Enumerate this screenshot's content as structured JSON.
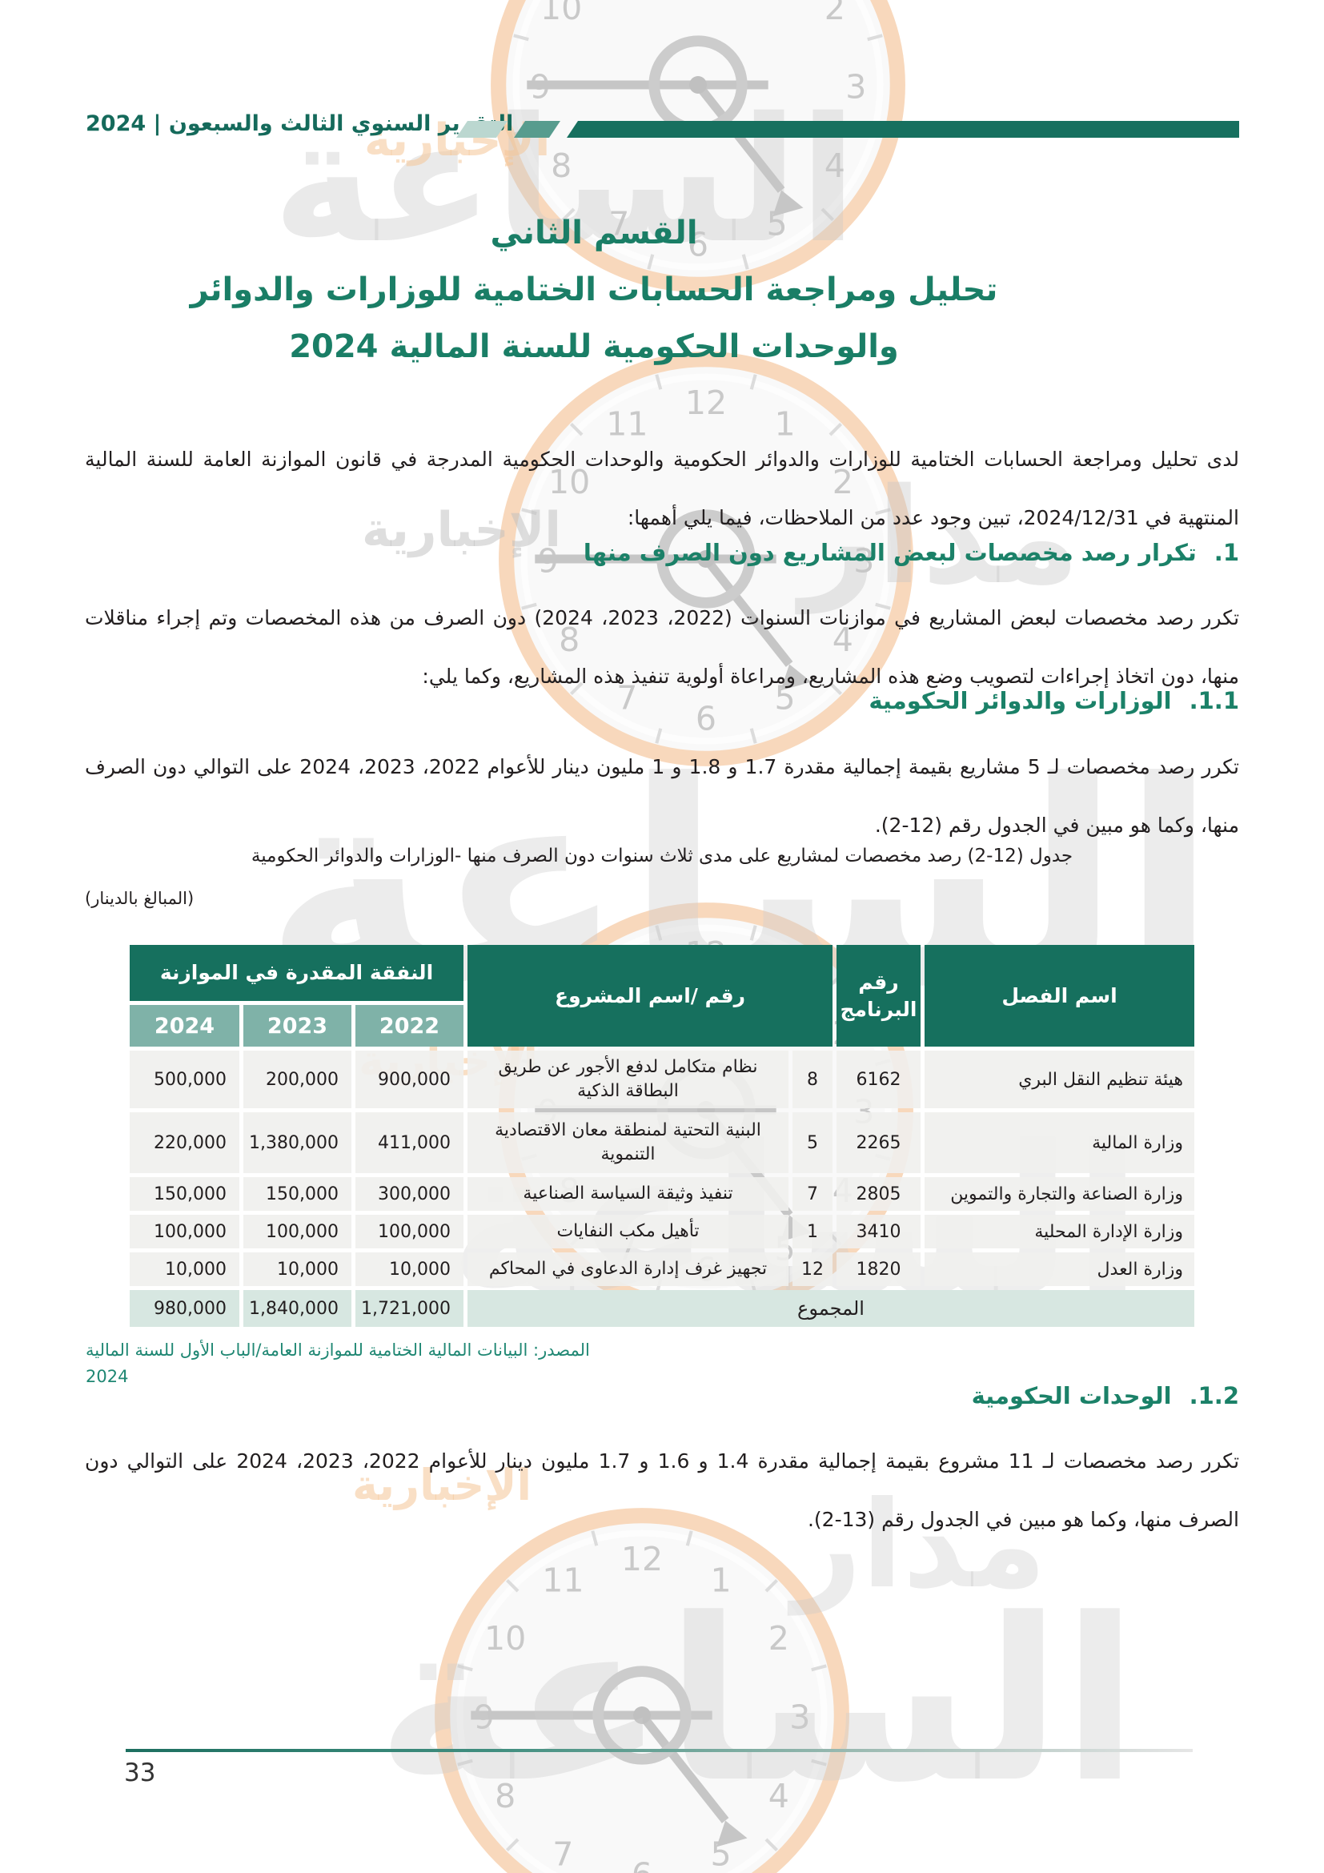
{
  "header": {
    "title": "التقرير السنوي الثالث والسبعون | 2024"
  },
  "title": {
    "line1": "القسم الثاني",
    "line2": "تحليل ومراجعة الحسابات الختامية للوزارات والدوائر",
    "line3": "والوحدات الحكومية للسنة المالية  2024"
  },
  "paras": {
    "p1": "لدى تحليل ومراجعة الحسابات الختامية للوزارات والدوائر الحكومية والوحدات الحكومية المدرجة في قانون الموازنة العامة للسنة المالية المنتهية في 2024/12/31، تبين وجود عدد من الملاحظات، فيما يلي أهمها:",
    "p2": "تكرر رصد مخصصات لبعض المشاريع في موازنات السنوات (2022، 2023، 2024) دون الصرف من هذه المخصصات وتم إجراء مناقلات منها، دون اتخاذ إجراءات لتصويب وضع هذه المشاريع، ومراعاة أولوية تنفيذ هذه المشاريع، وكما يلي:",
    "p3": "تكرر رصد مخصصات لـ 5 مشاريع بقيمة إجمالية مقدرة 1.7 و 1.8 و 1 مليون دينار للأعوام 2022، 2023، 2024 على التوالي دون الصرف منها، وكما هو مبين في الجدول رقم (12-2).",
    "p4": "تكرر رصد مخصصات لـ 11 مشروع بقيمة إجمالية مقدرة 1.4 و 1.6 و 1.7 مليون دينار للأعوام 2022، 2023، 2024 على التوالي دون الصرف منها، وكما هو مبين في الجدول رقم (13-2)."
  },
  "sections": {
    "h1": {
      "num": "1.",
      "text": "تكرار رصد مخصصات لبعض المشاريع دون الصرف منها"
    },
    "h2": {
      "num": "1.1.",
      "text": "الوزارات والدوائر الحكومية"
    },
    "h3": {
      "num": "1.2.",
      "text": "الوحدات الحكومية"
    }
  },
  "table": {
    "caption": "جدول (12-2) رصد مخصصات لمشاريع على مدى ثلاث سنوات دون الصرف منها -الوزارات والدوائر الحكومية",
    "amounts_note": "(المبالغ بالدينار)",
    "headers": {
      "expense": "النفقة المقدرة في الموازنة",
      "project": "رقم /اسم المشروع",
      "program": "رقم البرنامج",
      "chapter": "اسم الفصل",
      "years": [
        "2024",
        "2023",
        "2022"
      ]
    },
    "rows": [
      {
        "chapter": "هيئة تنظيم النقل البري",
        "program_no": "6162",
        "project_no": "8",
        "name": "نظام متكامل لدفع الأجور عن طريق البطاقة الذكية",
        "y2022": "900,000",
        "y2023": "200,000",
        "y2024": "500,000"
      },
      {
        "chapter": "وزارة المالية",
        "program_no": "2265",
        "project_no": "5",
        "name": "البنية التحتية لمنطقة معان الاقتصادية التنموية",
        "y2022": "411,000",
        "y2023": "1,380,000",
        "y2024": "220,000"
      },
      {
        "chapter": "وزارة الصناعة والتجارة والتموين",
        "program_no": "2805",
        "project_no": "7",
        "name": "تنفيذ وثيقة السياسة الصناعية",
        "y2022": "300,000",
        "y2023": "150,000",
        "y2024": "150,000"
      },
      {
        "chapter": "وزارة الإدارة المحلية",
        "program_no": "3410",
        "project_no": "1",
        "name": "تأهيل مكب النفايات",
        "y2022": "100,000",
        "y2023": "100,000",
        "y2024": "100,000"
      },
      {
        "chapter": "وزارة العدل",
        "program_no": "1820",
        "project_no": "12",
        "name": "تجهيز غرف إدارة الدعاوى في المحاكم",
        "y2022": "10,000",
        "y2023": "10,000",
        "y2024": "10,000"
      }
    ],
    "total": {
      "label": "المجموع",
      "y2022": "1,721,000",
      "y2023": "1,840,000",
      "y2024": "980,000"
    }
  },
  "source": {
    "text": "المصدر: البيانات المالية الختامية للموازنة العامة/الباب الأول للسنة المالية 2024"
  },
  "footer": {
    "page_number": "33"
  },
  "watermark": {
    "text_large": "الساعة",
    "text_small": "الإخبارية",
    "text_side": "مدار",
    "clock_numbers": [
      "12",
      "1",
      "2",
      "3",
      "4",
      "5",
      "6",
      "7",
      "8",
      "9",
      "10",
      "11"
    ]
  },
  "colors": {
    "teal_dark": "#16705e",
    "teal_heading": "#1b8168",
    "bar_light": "#bbd7d0",
    "bar_mid": "#579c8e",
    "year_cell": "#7fb2a8",
    "total_row": "#d7e7e1",
    "data_cell": "#efefed",
    "source_teal": "#1f8773",
    "clock_ring": "#f8d8bc"
  }
}
